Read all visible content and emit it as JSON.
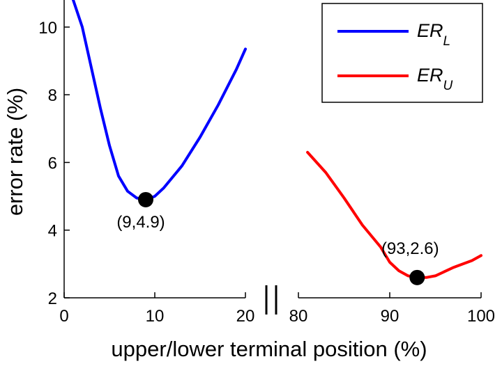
{
  "chart_data": {
    "type": "line",
    "title": "",
    "xlabel": "upper/lower terminal position (%)",
    "ylabel": "error rate (%)",
    "ylim": [
      2,
      10.8
    ],
    "y_ticks": [
      2,
      4,
      6,
      8,
      10
    ],
    "x_axis_break": true,
    "x_segments": [
      {
        "range": [
          0,
          20
        ],
        "ticks": [
          0,
          10,
          20
        ]
      },
      {
        "range": [
          80,
          100
        ],
        "ticks": [
          80,
          90,
          100
        ]
      }
    ],
    "grid": false,
    "legend_position": "top-right",
    "series": [
      {
        "name_main": "ER",
        "name_sub": "L",
        "color": "#0000ff",
        "segment": 0,
        "x": [
          1,
          2,
          3,
          4,
          5,
          6,
          7,
          8,
          9,
          10,
          11,
          13,
          15,
          17,
          19,
          20
        ],
        "y": [
          10.8,
          10.0,
          8.8,
          7.6,
          6.5,
          5.6,
          5.15,
          4.95,
          4.9,
          5.0,
          5.25,
          5.9,
          6.75,
          7.7,
          8.75,
          9.35
        ]
      },
      {
        "name_main": "ER",
        "name_sub": "U",
        "color": "#ff0000",
        "segment": 1,
        "x": [
          81,
          83,
          85,
          87,
          89,
          90,
          91,
          92,
          93,
          94,
          95,
          97,
          99,
          100
        ],
        "y": [
          6.3,
          5.7,
          4.95,
          4.15,
          3.5,
          3.05,
          2.8,
          2.65,
          2.6,
          2.6,
          2.65,
          2.9,
          3.1,
          3.25
        ]
      }
    ],
    "annotations": [
      {
        "text": "(9,4.9)",
        "x": 9,
        "y": 4.9,
        "segment": 0
      },
      {
        "text": "(93,2.6)",
        "x": 93,
        "y": 2.6,
        "segment": 1
      }
    ]
  }
}
